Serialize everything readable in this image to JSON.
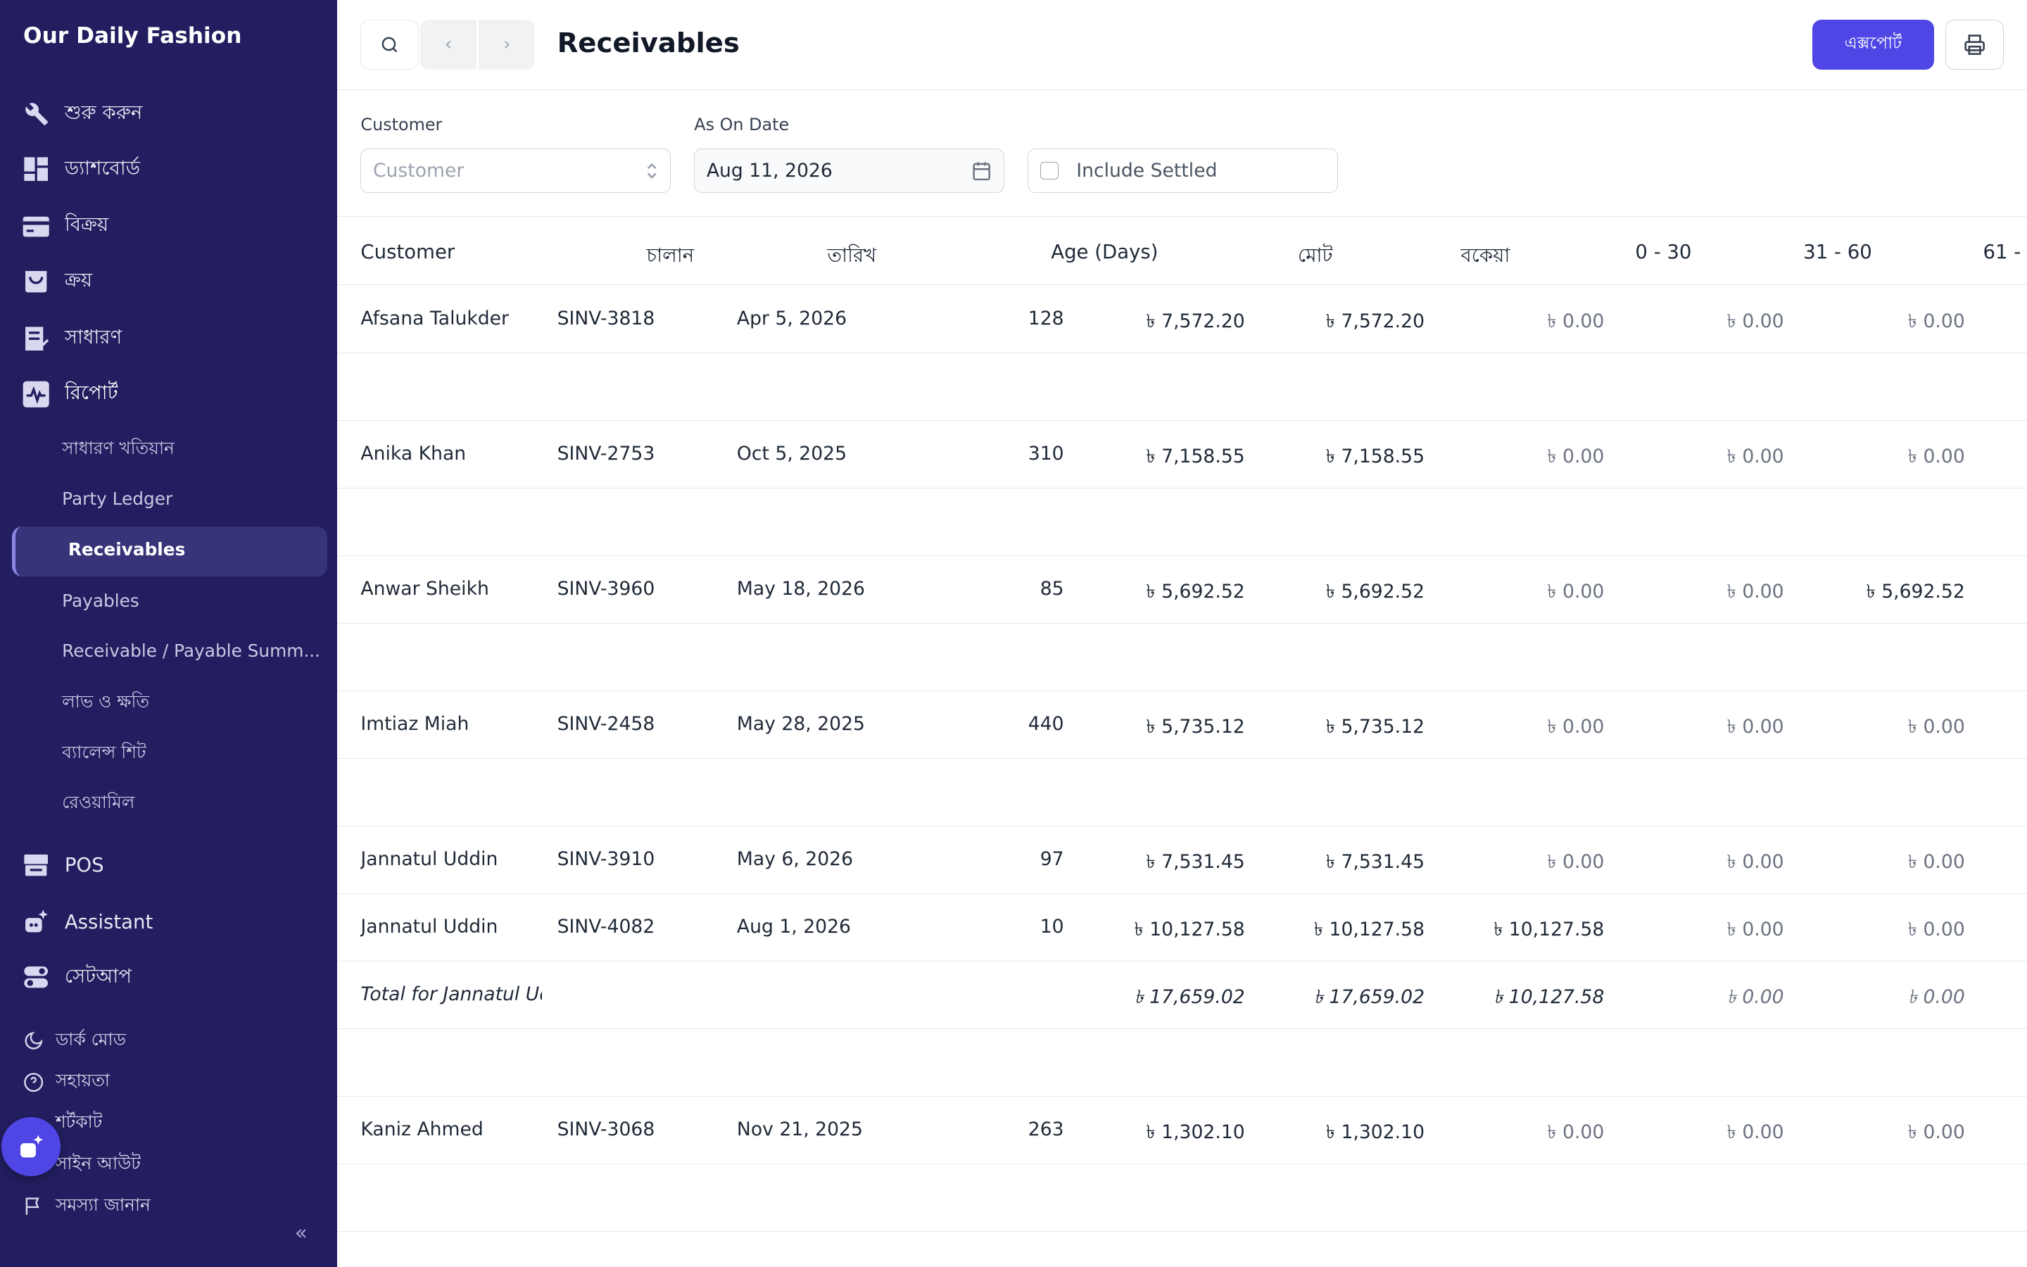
{
  "app": {
    "title": "Our Daily Fashion"
  },
  "sidebar": {
    "items": [
      {
        "label": "শুরু করুন",
        "icon": "tools-icon"
      },
      {
        "label": "ড্যাশবোর্ড",
        "icon": "dashboard-icon"
      },
      {
        "label": "বিক্রয়",
        "icon": "sales-icon"
      },
      {
        "label": "ক্রয়",
        "icon": "purchase-icon"
      },
      {
        "label": "সাধারণ",
        "icon": "common-icon"
      },
      {
        "label": "রিপোর্ট",
        "icon": "reports-icon"
      }
    ],
    "sub_items": [
      "সাধারণ খতিয়ান",
      "Party Ledger",
      "Receivables",
      "Payables",
      "Receivable / Payable Summ...",
      "লাভ ও ক্ষতি",
      "ব্যালেন্স শিট",
      "রেওয়ামিল"
    ],
    "bottom_items": [
      {
        "label": "POS",
        "icon": "pos-icon"
      },
      {
        "label": "Assistant",
        "icon": "assistant-icon"
      },
      {
        "label": "সেটআপ",
        "icon": "setup-icon"
      }
    ],
    "footer": [
      "ডার্ক মোড",
      "সহায়তা",
      "শর্টকাট",
      "সাইন আউট",
      "সমস্যা জানান"
    ]
  },
  "header": {
    "title": "Receivables",
    "export_label": "এক্সপোর্ট"
  },
  "filters": {
    "customer_label": "Customer",
    "customer_placeholder": "Customer",
    "date_label": "As On Date",
    "date_value": "Aug 11, 2026",
    "include_settled": "Include Settled"
  },
  "table": {
    "columns": [
      "Customer",
      "চালান",
      "তারিখ",
      "Age (Days)",
      "মোট",
      "বকেয়া",
      "0 - 30",
      "31 - 60",
      "61 -"
    ],
    "rows": [
      {
        "customer": "Afsana Talukder",
        "invoice": "SINV-3818",
        "date": "Apr 5, 2026",
        "age": "128",
        "total": "৳ 7,572.20",
        "due": "৳ 7,572.20",
        "b1": "৳ 0.00",
        "b2": "৳ 0.00",
        "b3": "৳ 0.00"
      },
      null,
      {
        "customer": "Anika Khan",
        "invoice": "SINV-2753",
        "date": "Oct 5, 2025",
        "age": "310",
        "total": "৳ 7,158.55",
        "due": "৳ 7,158.55",
        "b1": "৳ 0.00",
        "b2": "৳ 0.00",
        "b3": "৳ 0.00"
      },
      null,
      {
        "customer": "Anwar Sheikh",
        "invoice": "SINV-3960",
        "date": "May 18, 2026",
        "age": "85",
        "total": "৳ 5,692.52",
        "due": "৳ 5,692.52",
        "b1": "৳ 0.00",
        "b2": "৳ 0.00",
        "b3": "৳ 5,692.52"
      },
      null,
      {
        "customer": "Imtiaz Miah",
        "invoice": "SINV-2458",
        "date": "May 28, 2025",
        "age": "440",
        "total": "৳ 5,735.12",
        "due": "৳ 5,735.12",
        "b1": "৳ 0.00",
        "b2": "৳ 0.00",
        "b3": "৳ 0.00"
      },
      null,
      {
        "customer": "Jannatul Uddin",
        "invoice": "SINV-3910",
        "date": "May 6, 2026",
        "age": "97",
        "total": "৳ 7,531.45",
        "due": "৳ 7,531.45",
        "b1": "৳ 0.00",
        "b2": "৳ 0.00",
        "b3": "৳ 0.00"
      },
      {
        "customer": "Jannatul Uddin",
        "invoice": "SINV-4082",
        "date": "Aug 1, 2026",
        "age": "10",
        "total": "৳ 10,127.58",
        "due": "৳ 10,127.58",
        "b1": "৳ 10,127.58",
        "b2": "৳ 0.00",
        "b3": "৳ 0.00"
      },
      {
        "total_row": true,
        "customer": "Total for Jannatul Ud",
        "total": "৳ 17,659.02",
        "due": "৳ 17,659.02",
        "b1": "৳ 10,127.58",
        "b2": "৳ 0.00",
        "b3": "৳ 0.00"
      },
      null,
      {
        "customer": "Kaniz Ahmed",
        "invoice": "SINV-3068",
        "date": "Nov 21, 2025",
        "age": "263",
        "total": "৳ 1,302.10",
        "due": "৳ 1,302.10",
        "b1": "৳ 0.00",
        "b2": "৳ 0.00",
        "b3": "৳ 0.00"
      },
      null
    ]
  },
  "colors": {
    "sidebar_bg": "#221e5f",
    "accent": "#4f46e5"
  }
}
